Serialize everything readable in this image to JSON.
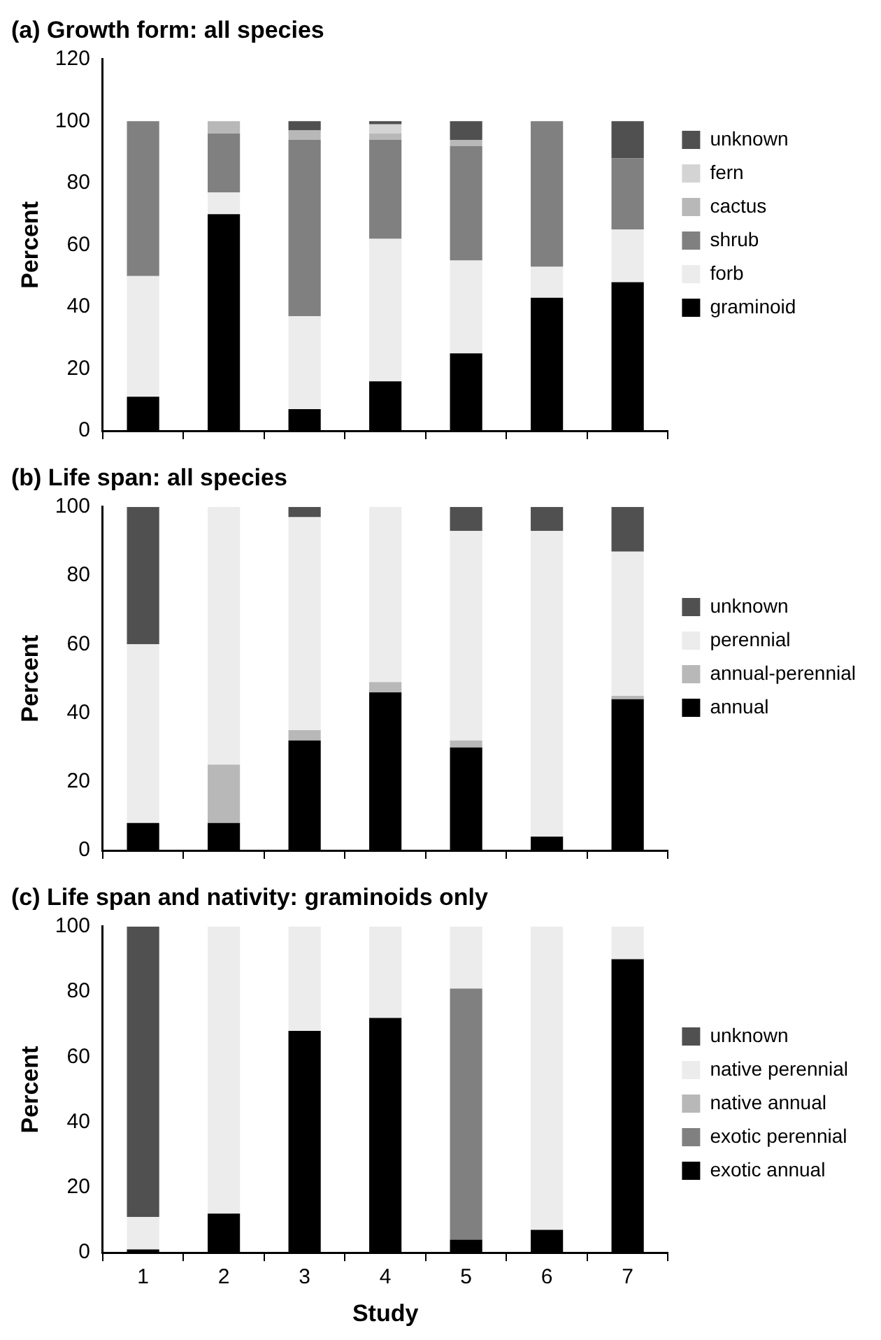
{
  "chart_data": [
    {
      "type": "bar",
      "title": "(a) Growth form: all species",
      "ylabel": "Percent",
      "categories": [
        "1",
        "2",
        "3",
        "4",
        "5",
        "6",
        "7"
      ],
      "stacked": true,
      "ylim": [
        0,
        120
      ],
      "yticks": [
        0,
        20,
        40,
        60,
        80,
        100,
        120
      ],
      "grid": false,
      "legend": "right",
      "tick_labels": "y",
      "series": [
        {
          "name": "graminoid",
          "color": "#000000",
          "values": [
            11,
            70,
            7,
            16,
            25,
            43,
            48
          ]
        },
        {
          "name": "forb",
          "color": "#ececec",
          "values": [
            39,
            7,
            30,
            46,
            30,
            10,
            17
          ]
        },
        {
          "name": "shrub",
          "color": "#808080",
          "values": [
            50,
            19,
            57,
            32,
            37,
            47,
            23
          ]
        },
        {
          "name": "cactus",
          "color": "#b8b8b8",
          "values": [
            null,
            4,
            3,
            2,
            2,
            null,
            null
          ]
        },
        {
          "name": "fern",
          "color": "#d4d4d4",
          "values": [
            null,
            null,
            null,
            3,
            null,
            null,
            null
          ]
        },
        {
          "name": "unknown",
          "color": "#505050",
          "values": [
            null,
            null,
            3,
            1,
            6,
            null,
            12
          ]
        }
      ]
    },
    {
      "type": "bar",
      "title": "(b) Life span: all species",
      "ylabel": "Percent",
      "categories": [
        "1",
        "2",
        "3",
        "4",
        "5",
        "6",
        "7"
      ],
      "stacked": true,
      "ylim": [
        0,
        100
      ],
      "yticks": [
        0,
        20,
        40,
        60,
        80,
        100
      ],
      "grid": false,
      "legend": "right",
      "tick_labels": "y",
      "series": [
        {
          "name": "annual",
          "color": "#000000",
          "values": [
            8,
            8,
            32,
            46,
            30,
            4,
            44
          ]
        },
        {
          "name": "annual-perennial",
          "color": "#b8b8b8",
          "values": [
            null,
            17,
            3,
            3,
            2,
            null,
            1
          ]
        },
        {
          "name": "perennial",
          "color": "#ececec",
          "values": [
            52,
            75,
            62,
            51,
            61,
            89,
            42
          ]
        },
        {
          "name": "unknown",
          "color": "#505050",
          "values": [
            40,
            null,
            3,
            null,
            7,
            7,
            13
          ]
        }
      ]
    },
    {
      "type": "bar",
      "title": "(c) Life span and nativity: graminoids only",
      "xlabel": "Study",
      "ylabel": "Percent",
      "categories": [
        "1",
        "2",
        "3",
        "4",
        "5",
        "6",
        "7"
      ],
      "stacked": true,
      "ylim": [
        0,
        100
      ],
      "yticks": [
        0,
        20,
        40,
        60,
        80,
        100
      ],
      "grid": false,
      "legend": "right",
      "series": [
        {
          "name": "exotic annual",
          "color": "#000000",
          "values": [
            1,
            12,
            68,
            72,
            4,
            7,
            90
          ]
        },
        {
          "name": "exotic perennial",
          "color": "#808080",
          "values": [
            null,
            null,
            null,
            null,
            77,
            null,
            null
          ]
        },
        {
          "name": "native annual",
          "color": "#b8b8b8",
          "values": [
            null,
            null,
            null,
            null,
            null,
            null,
            null
          ]
        },
        {
          "name": "native perennial",
          "color": "#ececec",
          "values": [
            10,
            88,
            32,
            28,
            19,
            93,
            10
          ]
        },
        {
          "name": "unknown",
          "color": "#505050",
          "values": [
            89,
            null,
            null,
            null,
            null,
            null,
            null
          ]
        }
      ]
    }
  ]
}
